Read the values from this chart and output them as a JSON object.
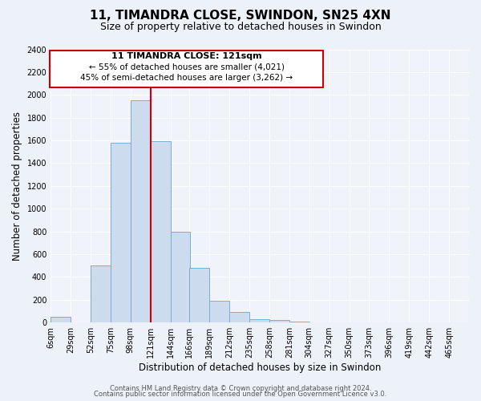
{
  "title": "11, TIMANDRA CLOSE, SWINDON, SN25 4XN",
  "subtitle": "Size of property relative to detached houses in Swindon",
  "xlabel": "Distribution of detached houses by size in Swindon",
  "ylabel": "Number of detached properties",
  "bin_labels": [
    "6sqm",
    "29sqm",
    "52sqm",
    "75sqm",
    "98sqm",
    "121sqm",
    "144sqm",
    "166sqm",
    "189sqm",
    "212sqm",
    "235sqm",
    "258sqm",
    "281sqm",
    "304sqm",
    "327sqm",
    "350sqm",
    "373sqm",
    "396sqm",
    "419sqm",
    "442sqm",
    "465sqm"
  ],
  "bin_edges": [
    6,
    29,
    52,
    75,
    98,
    121,
    144,
    166,
    189,
    212,
    235,
    258,
    281,
    304,
    327,
    350,
    373,
    396,
    419,
    442,
    465
  ],
  "bar_heights": [
    50,
    0,
    500,
    1580,
    1950,
    1590,
    800,
    480,
    190,
    90,
    30,
    20,
    5,
    3,
    2,
    2,
    0,
    0,
    0,
    0
  ],
  "bar_color": "#ccdcee",
  "bar_edge_color": "#7aadd4",
  "vline_x": 121,
  "vline_color": "#cc0000",
  "annotation_title": "11 TIMANDRA CLOSE: 121sqm",
  "annotation_line1": "← 55% of detached houses are smaller (4,021)",
  "annotation_line2": "45% of semi-detached houses are larger (3,262) →",
  "annotation_box_edge": "#cc0000",
  "ylim": [
    0,
    2400
  ],
  "yticks": [
    0,
    200,
    400,
    600,
    800,
    1000,
    1200,
    1400,
    1600,
    1800,
    2000,
    2200,
    2400
  ],
  "footer_line1": "Contains HM Land Registry data © Crown copyright and database right 2024.",
  "footer_line2": "Contains public sector information licensed under the Open Government Licence v3.0.",
  "bg_color": "#edf1f8",
  "plot_bg_color": "#f0f4fa",
  "title_fontsize": 11,
  "subtitle_fontsize": 9,
  "axis_label_fontsize": 8.5,
  "tick_fontsize": 7,
  "footer_fontsize": 6
}
